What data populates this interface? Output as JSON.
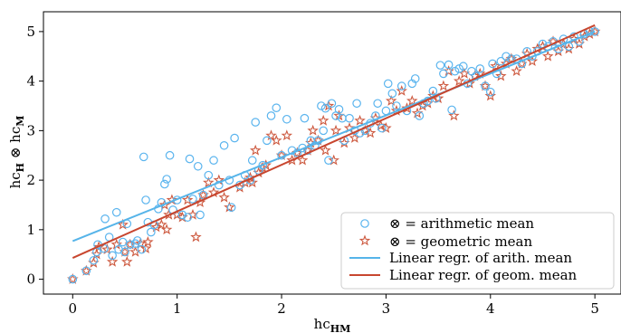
{
  "chart_data": {
    "type": "scatter",
    "xlabel": "hc_HM",
    "ylabel": "hc_H ⊗ hc_M",
    "xlim": [
      -0.28,
      5.25
    ],
    "ylim": [
      -0.3,
      5.4
    ],
    "xticks": [
      0,
      1,
      2,
      3,
      4,
      5
    ],
    "yticks": [
      0,
      1,
      2,
      3,
      4,
      5
    ],
    "grid": false,
    "legend_position": "bottom-right",
    "colors": {
      "arithmetic": "#5ab4ee",
      "geometric": "#cd5a40",
      "arith_line": "#56b4e9",
      "geom_line": "#c8462f"
    },
    "series": [
      {
        "name": "⊗ = arithmetic mean",
        "marker": "circle",
        "points": [
          [
            0,
            0
          ],
          [
            0.13,
            0.17
          ],
          [
            0.2,
            0.38
          ],
          [
            0.23,
            0.55
          ],
          [
            0.24,
            0.7
          ],
          [
            0.3,
            0.62
          ],
          [
            0.31,
            1.22
          ],
          [
            0.35,
            0.85
          ],
          [
            0.38,
            0.48
          ],
          [
            0.42,
            1.35
          ],
          [
            0.44,
            0.6
          ],
          [
            0.48,
            0.75
          ],
          [
            0.5,
            0.55
          ],
          [
            0.52,
            1.12
          ],
          [
            0.55,
            0.7
          ],
          [
            0.6,
            0.72
          ],
          [
            0.62,
            0.78
          ],
          [
            0.66,
            0.6
          ],
          [
            0.68,
            2.47
          ],
          [
            0.7,
            1.6
          ],
          [
            0.72,
            1.15
          ],
          [
            0.75,
            0.95
          ],
          [
            0.78,
            1.1
          ],
          [
            0.82,
            1.42
          ],
          [
            0.85,
            1.55
          ],
          [
            0.88,
            1.92
          ],
          [
            0.9,
            2.02
          ],
          [
            0.93,
            2.5
          ],
          [
            0.96,
            1.4
          ],
          [
            1.0,
            1.6
          ],
          [
            1.05,
            1.3
          ],
          [
            1.1,
            1.25
          ],
          [
            1.12,
            2.43
          ],
          [
            1.15,
            1.62
          ],
          [
            1.2,
            2.28
          ],
          [
            1.22,
            1.3
          ],
          [
            1.25,
            1.7
          ],
          [
            1.3,
            2.1
          ],
          [
            1.35,
            2.4
          ],
          [
            1.4,
            1.9
          ],
          [
            1.45,
            2.7
          ],
          [
            1.5,
            2.0
          ],
          [
            1.52,
            1.45
          ],
          [
            1.55,
            2.85
          ],
          [
            1.6,
            1.9
          ],
          [
            1.65,
            2.1
          ],
          [
            1.7,
            2.0
          ],
          [
            1.72,
            2.4
          ],
          [
            1.75,
            3.17
          ],
          [
            1.78,
            2.2
          ],
          [
            1.82,
            2.3
          ],
          [
            1.86,
            2.8
          ],
          [
            1.9,
            3.3
          ],
          [
            1.95,
            3.46
          ],
          [
            2.0,
            2.5
          ],
          [
            2.05,
            3.23
          ],
          [
            2.1,
            2.6
          ],
          [
            2.15,
            2.55
          ],
          [
            2.2,
            2.65
          ],
          [
            2.22,
            3.25
          ],
          [
            2.25,
            2.6
          ],
          [
            2.28,
            2.8
          ],
          [
            2.32,
            2.7
          ],
          [
            2.35,
            2.8
          ],
          [
            2.38,
            3.5
          ],
          [
            2.4,
            3.0
          ],
          [
            2.42,
            3.45
          ],
          [
            2.45,
            2.4
          ],
          [
            2.48,
            3.55
          ],
          [
            2.52,
            3.3
          ],
          [
            2.55,
            3.43
          ],
          [
            2.58,
            3.25
          ],
          [
            2.6,
            2.8
          ],
          [
            2.65,
            3.25
          ],
          [
            2.7,
            3.0
          ],
          [
            2.72,
            3.55
          ],
          [
            2.75,
            2.95
          ],
          [
            2.8,
            3.0
          ],
          [
            2.85,
            3.15
          ],
          [
            2.9,
            3.3
          ],
          [
            2.92,
            3.55
          ],
          [
            2.96,
            3.05
          ],
          [
            3.0,
            3.4
          ],
          [
            3.02,
            3.95
          ],
          [
            3.06,
            3.75
          ],
          [
            3.1,
            3.5
          ],
          [
            3.15,
            3.9
          ],
          [
            3.2,
            3.4
          ],
          [
            3.25,
            3.95
          ],
          [
            3.28,
            4.05
          ],
          [
            3.32,
            3.3
          ],
          [
            3.36,
            3.55
          ],
          [
            3.4,
            3.6
          ],
          [
            3.45,
            3.8
          ],
          [
            3.48,
            3.65
          ],
          [
            3.52,
            4.32
          ],
          [
            3.55,
            4.15
          ],
          [
            3.6,
            4.33
          ],
          [
            3.63,
            3.42
          ],
          [
            3.66,
            4.2
          ],
          [
            3.7,
            4.25
          ],
          [
            3.74,
            4.3
          ],
          [
            3.78,
            3.95
          ],
          [
            3.82,
            4.2
          ],
          [
            3.86,
            4.1
          ],
          [
            3.9,
            4.25
          ],
          [
            3.95,
            3.9
          ],
          [
            4.0,
            3.78
          ],
          [
            4.02,
            4.35
          ],
          [
            4.06,
            4.15
          ],
          [
            4.1,
            4.4
          ],
          [
            4.15,
            4.5
          ],
          [
            4.2,
            4.45
          ],
          [
            4.25,
            4.45
          ],
          [
            4.3,
            4.35
          ],
          [
            4.35,
            4.6
          ],
          [
            4.4,
            4.5
          ],
          [
            4.45,
            4.6
          ],
          [
            4.5,
            4.75
          ],
          [
            4.55,
            4.7
          ],
          [
            4.6,
            4.8
          ],
          [
            4.65,
            4.65
          ],
          [
            4.7,
            4.85
          ],
          [
            4.75,
            4.7
          ],
          [
            4.8,
            4.9
          ],
          [
            4.85,
            4.8
          ],
          [
            4.9,
            4.95
          ],
          [
            4.95,
            5.0
          ],
          [
            5.0,
            5.0
          ]
        ]
      },
      {
        "name": "⊗ = geometric mean",
        "marker": "star",
        "points": [
          [
            0,
            0
          ],
          [
            0.13,
            0.17
          ],
          [
            0.2,
            0.33
          ],
          [
            0.23,
            0.5
          ],
          [
            0.25,
            0.65
          ],
          [
            0.33,
            0.6
          ],
          [
            0.38,
            0.35
          ],
          [
            0.42,
            0.7
          ],
          [
            0.48,
            1.1
          ],
          [
            0.5,
            0.55
          ],
          [
            0.52,
            0.35
          ],
          [
            0.55,
            0.7
          ],
          [
            0.6,
            0.55
          ],
          [
            0.65,
            0.72
          ],
          [
            0.7,
            0.62
          ],
          [
            0.72,
            0.75
          ],
          [
            0.8,
            1.05
          ],
          [
            0.85,
            1.1
          ],
          [
            0.88,
            1.5
          ],
          [
            0.9,
            1.0
          ],
          [
            0.92,
            1.3
          ],
          [
            0.95,
            1.6
          ],
          [
            1.0,
            1.3
          ],
          [
            1.05,
            1.25
          ],
          [
            1.1,
            1.6
          ],
          [
            1.15,
            1.3
          ],
          [
            1.18,
            0.85
          ],
          [
            1.22,
            1.55
          ],
          [
            1.25,
            1.7
          ],
          [
            1.3,
            1.95
          ],
          [
            1.35,
            1.75
          ],
          [
            1.4,
            2.0
          ],
          [
            1.45,
            1.65
          ],
          [
            1.5,
            1.45
          ],
          [
            1.6,
            1.85
          ],
          [
            1.65,
            1.95
          ],
          [
            1.7,
            2.05
          ],
          [
            1.72,
            1.95
          ],
          [
            1.75,
            2.6
          ],
          [
            1.78,
            2.15
          ],
          [
            1.82,
            2.25
          ],
          [
            1.85,
            2.3
          ],
          [
            1.9,
            2.9
          ],
          [
            1.95,
            2.8
          ],
          [
            2.0,
            2.5
          ],
          [
            2.05,
            2.9
          ],
          [
            2.1,
            2.4
          ],
          [
            2.15,
            2.55
          ],
          [
            2.2,
            2.4
          ],
          [
            2.25,
            2.6
          ],
          [
            2.28,
            2.75
          ],
          [
            2.3,
            3.0
          ],
          [
            2.35,
            2.8
          ],
          [
            2.4,
            3.2
          ],
          [
            2.42,
            2.6
          ],
          [
            2.45,
            3.5
          ],
          [
            2.5,
            2.4
          ],
          [
            2.52,
            3.0
          ],
          [
            2.55,
            3.3
          ],
          [
            2.6,
            2.75
          ],
          [
            2.65,
            3.05
          ],
          [
            2.7,
            2.85
          ],
          [
            2.75,
            3.2
          ],
          [
            2.8,
            3.0
          ],
          [
            2.85,
            2.95
          ],
          [
            2.9,
            3.25
          ],
          [
            2.95,
            3.1
          ],
          [
            3.0,
            3.05
          ],
          [
            3.05,
            3.6
          ],
          [
            3.1,
            3.4
          ],
          [
            3.15,
            3.8
          ],
          [
            3.2,
            3.45
          ],
          [
            3.25,
            3.6
          ],
          [
            3.3,
            3.35
          ],
          [
            3.35,
            3.5
          ],
          [
            3.4,
            3.55
          ],
          [
            3.45,
            3.7
          ],
          [
            3.5,
            3.65
          ],
          [
            3.55,
            3.9
          ],
          [
            3.6,
            4.2
          ],
          [
            3.65,
            3.3
          ],
          [
            3.7,
            4.0
          ],
          [
            3.75,
            4.15
          ],
          [
            3.8,
            3.95
          ],
          [
            3.85,
            4.1
          ],
          [
            3.9,
            4.15
          ],
          [
            3.95,
            3.9
          ],
          [
            4.0,
            3.7
          ],
          [
            4.05,
            4.3
          ],
          [
            4.1,
            4.1
          ],
          [
            4.15,
            4.35
          ],
          [
            4.2,
            4.45
          ],
          [
            4.25,
            4.2
          ],
          [
            4.3,
            4.35
          ],
          [
            4.35,
            4.55
          ],
          [
            4.4,
            4.4
          ],
          [
            4.45,
            4.65
          ],
          [
            4.5,
            4.7
          ],
          [
            4.55,
            4.5
          ],
          [
            4.6,
            4.8
          ],
          [
            4.65,
            4.6
          ],
          [
            4.7,
            4.75
          ],
          [
            4.75,
            4.65
          ],
          [
            4.8,
            4.85
          ],
          [
            4.85,
            4.75
          ],
          [
            4.9,
            4.9
          ],
          [
            4.95,
            4.95
          ],
          [
            5.0,
            5.0
          ]
        ]
      },
      {
        "name": "Linear regr. of arith. mean",
        "type": "line",
        "x": [
          0,
          5
        ],
        "y": [
          0.77,
          5.0
        ]
      },
      {
        "name": "Linear regr. of geom. mean",
        "type": "line",
        "x": [
          0,
          5
        ],
        "y": [
          0.43,
          5.13
        ]
      }
    ]
  }
}
